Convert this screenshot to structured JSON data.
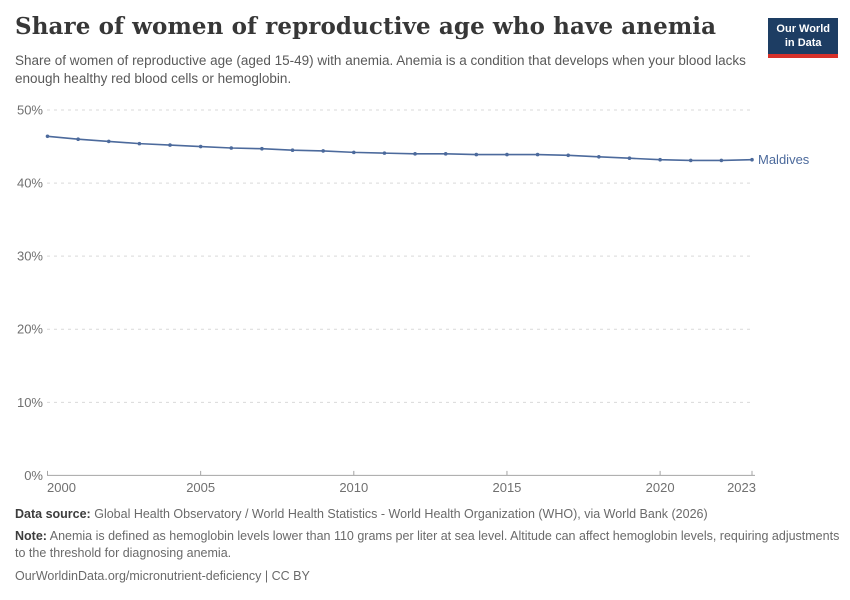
{
  "header": {
    "title": "Share of women of reproductive age who have anemia",
    "subtitle": "Share of women of reproductive age (aged 15-49) with anemia. Anemia is a condition that develops when your blood lacks enough healthy red blood cells or hemoglobin.",
    "logo": {
      "line1": "Our World",
      "line2": "in Data",
      "bg_color": "#1d3d63",
      "accent_color": "#d7312a"
    }
  },
  "chart_data": {
    "type": "line",
    "title": "Share of women of reproductive age who have anemia",
    "x": [
      2000,
      2001,
      2002,
      2003,
      2004,
      2005,
      2006,
      2007,
      2008,
      2009,
      2010,
      2011,
      2012,
      2013,
      2014,
      2015,
      2016,
      2017,
      2018,
      2019,
      2020,
      2021,
      2022,
      2023
    ],
    "series": [
      {
        "name": "Maldives",
        "color": "#4c6a9c",
        "values": [
          46.4,
          46.0,
          45.7,
          45.4,
          45.2,
          45.0,
          44.8,
          44.7,
          44.5,
          44.4,
          44.2,
          44.1,
          44.0,
          44.0,
          43.9,
          43.9,
          43.9,
          43.8,
          43.6,
          43.4,
          43.2,
          43.1,
          43.1,
          43.2
        ]
      }
    ],
    "xlabel": "",
    "ylabel": "",
    "xticks": [
      2000,
      2005,
      2010,
      2015,
      2020,
      2023
    ],
    "ytick_values": [
      0,
      10,
      20,
      30,
      40,
      50
    ],
    "ytick_labels": [
      "0%",
      "10%",
      "20%",
      "30%",
      "40%",
      "50%"
    ],
    "xlim": [
      2000,
      2023
    ],
    "ylim": [
      0,
      50
    ],
    "grid": "horizontal-dashed",
    "legend_position": "end-of-line",
    "end_label": "Maldives"
  },
  "footer": {
    "data_source_label": "Data source:",
    "data_source_text": "Global Health Observatory / World Health Statistics - World Health Organization (WHO), via World Bank (2026)",
    "note_label": "Note:",
    "note_text": "Anemia is defined as hemoglobin levels lower than 110 grams per liter at sea level. Altitude can affect hemoglobin levels, requiring adjustments to the threshold for diagnosing anemia.",
    "citation_url": "OurWorldinData.org/micronutrient-deficiency",
    "citation_license": " | CC BY"
  },
  "colors": {
    "line": "#4c6a9c",
    "grid": "#d9d9d9",
    "axis": "#a5a5a5",
    "tick_label": "#707070",
    "title": "#373737",
    "subtitle": "#595959"
  }
}
